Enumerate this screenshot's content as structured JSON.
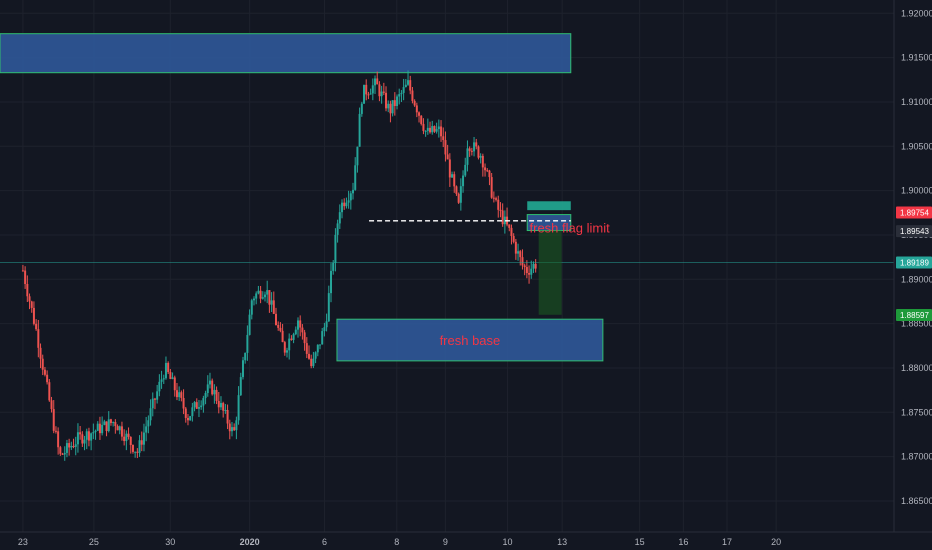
{
  "chart_data": {
    "type": "candlestick",
    "y_ticks": [
      "1.92000",
      "1.91500",
      "1.91000",
      "1.90500",
      "1.90000",
      "1.89500",
      "1.89000",
      "1.88500",
      "1.88000",
      "1.87500",
      "1.87000",
      "1.86500"
    ],
    "y_tick_values": [
      1.92,
      1.915,
      1.91,
      1.905,
      1.9,
      1.895,
      1.89,
      1.885,
      1.88,
      1.875,
      1.87,
      1.865
    ],
    "ylim": [
      1.8615,
      1.9215
    ],
    "x_ticks": [
      "23",
      "25",
      "30",
      "2020",
      "6",
      "8",
      "9",
      "10",
      "13",
      "15",
      "16",
      "17",
      "20"
    ],
    "x_tick_positions": [
      0,
      0.1548,
      0.3214,
      0.4946,
      0.6577,
      0.8155,
      0.9214,
      1.0571,
      1.1762,
      1.3452,
      1.4405,
      1.5357,
      1.6429
    ],
    "xlim": [
      -0.05,
      1.9
    ],
    "price_tags": [
      {
        "label": "1.89754",
        "value": 1.89754,
        "color": "#f23645"
      },
      {
        "label": "1.89543",
        "value": 1.89543,
        "color": "#2a2e39"
      },
      {
        "label": "1.89189",
        "value": 1.89189,
        "color": "#26a69a"
      },
      {
        "label": "1.88597",
        "value": 1.88597,
        "color": "#1e9a3a"
      }
    ],
    "zones": [
      {
        "label": "",
        "x0": -0.05,
        "x1": 1.195,
        "y0": 1.9133,
        "y1": 1.9177
      },
      {
        "label": "fresh base",
        "x0": 0.685,
        "x1": 1.265,
        "y0": 1.8808,
        "y1": 1.8855
      },
      {
        "label": "",
        "x0": 1.1,
        "x1": 1.195,
        "y0": 1.8955,
        "y1": 1.8973
      }
    ],
    "annotations": [
      {
        "text": "fresh flag limit",
        "x": 1.105,
        "y": 1.8953
      }
    ],
    "current_price": 1.89189,
    "dashed_level": 1.8966,
    "series_keypoints": {
      "x": [
        0,
        0.03,
        0.08,
        0.12,
        0.2,
        0.25,
        0.31,
        0.36,
        0.41,
        0.46,
        0.5,
        0.53,
        0.57,
        0.6,
        0.63,
        0.66,
        0.69,
        0.72,
        0.74,
        0.77,
        0.8,
        0.84,
        0.88,
        0.91,
        0.95,
        0.97,
        1.0,
        1.03,
        1.06,
        1.09,
        1.1,
        1.12
      ],
      "close": [
        1.891,
        1.884,
        1.87,
        1.872,
        1.874,
        1.8705,
        1.88,
        1.8745,
        1.878,
        1.8725,
        1.888,
        1.889,
        1.882,
        1.8855,
        1.88,
        1.885,
        1.898,
        1.9005,
        1.911,
        1.912,
        1.909,
        1.912,
        1.9065,
        1.9068,
        1.898,
        1.9055,
        1.904,
        1.8985,
        1.8955,
        1.8915,
        1.891,
        1.8918
      ]
    }
  }
}
